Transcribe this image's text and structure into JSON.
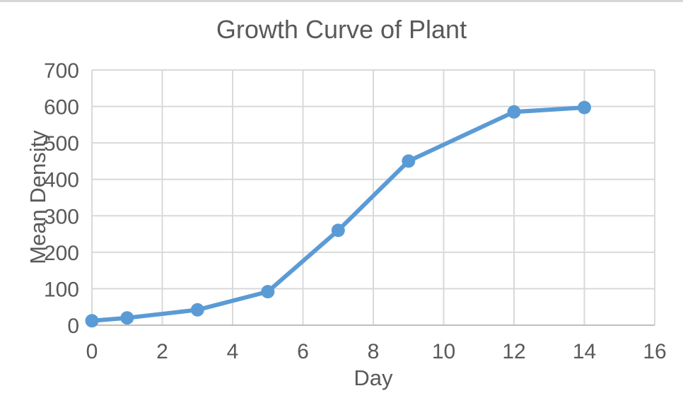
{
  "colors": {
    "series_blue": "#5B9BD5",
    "text": "#595959",
    "gridline": "#D9D9D9",
    "axis_line": "#BFBFBF",
    "background": "#FFFFFF",
    "top_border": "#D6D6D6"
  },
  "chart_data": {
    "type": "line",
    "title": "Growth Curve of Plant",
    "xlabel": "Day",
    "ylabel": "Mean Density",
    "xlim": [
      0,
      16
    ],
    "ylim": [
      0,
      700
    ],
    "xticks": [
      0,
      2,
      4,
      6,
      8,
      10,
      12,
      14,
      16
    ],
    "yticks": [
      0,
      100,
      200,
      300,
      400,
      500,
      600,
      700
    ],
    "grid": true,
    "legend": "none",
    "series": [
      {
        "name": "Mean Density",
        "x": [
          0,
          1,
          3,
          5,
          7,
          9,
          12,
          14
        ],
        "y": [
          12,
          20,
          42,
          92,
          260,
          450,
          585,
          597
        ],
        "color": "#5B9BD5",
        "marker": "circle",
        "line_style": "solid"
      }
    ]
  }
}
